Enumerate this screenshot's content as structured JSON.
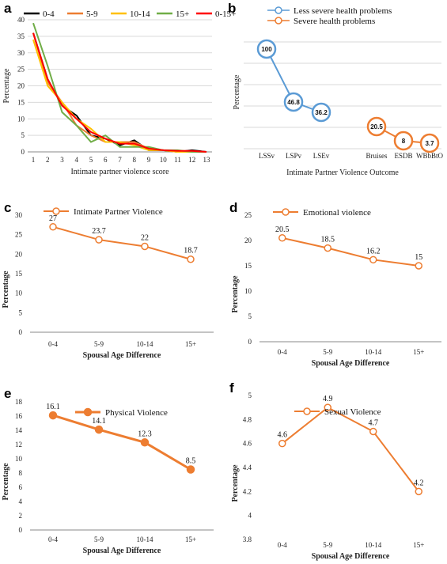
{
  "chart_data": [
    {
      "panel": "a",
      "type": "line",
      "xlabel": "Intimate partner violence score",
      "ylabel": "Percentage",
      "x": [
        1,
        2,
        3,
        4,
        5,
        6,
        7,
        8,
        9,
        10,
        11,
        12,
        13
      ],
      "ylim": [
        0,
        40
      ],
      "yticks": [
        0,
        5,
        10,
        15,
        20,
        25,
        30,
        35,
        40
      ],
      "grid": true,
      "legend": "top",
      "series": [
        {
          "name": "0-4",
          "color": "#000000",
          "values": [
            36,
            22,
            14,
            11,
            5,
            4,
            2,
            3.5,
            0.5,
            0.5,
            0,
            0.5,
            0
          ]
        },
        {
          "name": "5-9",
          "color": "#ED7D31",
          "values": [
            36,
            21,
            15,
            8,
            5,
            3,
            3,
            3,
            1,
            0.5,
            0,
            0,
            0
          ]
        },
        {
          "name": "10-14",
          "color": "#FFC000",
          "values": [
            34,
            20,
            15,
            10,
            7,
            3,
            3,
            2,
            0.5,
            0.5,
            0,
            0,
            0
          ]
        },
        {
          "name": "15+",
          "color": "#70AD47",
          "values": [
            39,
            26,
            12,
            8,
            3,
            5,
            1.5,
            1.5,
            1.5,
            0.5,
            0.5,
            0,
            0
          ]
        },
        {
          "name": "0-15+",
          "color": "#FF0000",
          "values": [
            36,
            22,
            14,
            10,
            6,
            4,
            2.5,
            2.5,
            1,
            0.5,
            0.3,
            0.3,
            0
          ]
        }
      ]
    },
    {
      "panel": "b",
      "type": "line",
      "xlabel": "Intimate Partner Violence Outcome",
      "ylabel": "Percentage",
      "legend": "top",
      "series": [
        {
          "name": "Less severe health problems",
          "color": "#5B9BD5",
          "categories": [
            "LSSv",
            "LSPv",
            "LSEv"
          ],
          "values": [
            100,
            46.8,
            36.2
          ],
          "labels": [
            "100",
            "46.8",
            "36.2"
          ]
        },
        {
          "name": "Severe health problems",
          "color": "#ED7D31",
          "categories": [
            "Bruises",
            "ESDB",
            "WBbBtO"
          ],
          "values": [
            20.5,
            8,
            3.7
          ],
          "labels": [
            "20.5",
            "8",
            "3.7"
          ]
        }
      ]
    },
    {
      "panel": "c",
      "type": "line",
      "xlabel": "Spousal Age Difference",
      "ylabel": "Percentage",
      "categories": [
        "0-4",
        "5-9",
        "10-14",
        "15+"
      ],
      "ylim": [
        0,
        30
      ],
      "yticks": [
        0,
        5,
        10,
        15,
        20,
        25,
        30
      ],
      "legend": "top",
      "series": [
        {
          "name": "Intimate Partner Violence",
          "color": "#ED7D31",
          "values": [
            27,
            23.7,
            22,
            18.7
          ],
          "labels": [
            "27",
            "23.7",
            "22",
            "18.7"
          ]
        }
      ]
    },
    {
      "panel": "d",
      "type": "line",
      "xlabel": "Spousal Age Difference",
      "ylabel": "Percentage",
      "categories": [
        "0-4",
        "5-9",
        "10-14",
        "15+"
      ],
      "ylim": [
        0,
        25
      ],
      "yticks": [
        0,
        5,
        10,
        15,
        20,
        25
      ],
      "legend": "top",
      "series": [
        {
          "name": "Emotional violence",
          "color": "#ED7D31",
          "values": [
            20.5,
            18.5,
            16.2,
            15
          ],
          "labels": [
            "20.5",
            "18.5",
            "16.2",
            "15"
          ]
        }
      ]
    },
    {
      "panel": "e",
      "type": "line",
      "xlabel": "Spousal Age Difference",
      "ylabel": "Percentage",
      "categories": [
        "0-4",
        "5-9",
        "10-14",
        "15+"
      ],
      "ylim": [
        0,
        18
      ],
      "yticks": [
        0,
        2,
        4,
        6,
        8,
        10,
        12,
        14,
        16,
        18
      ],
      "legend": "top",
      "series": [
        {
          "name": "Physical Violence",
          "color": "#ED7D31",
          "values": [
            16.1,
            14.1,
            12.3,
            8.5
          ],
          "labels": [
            "16.1",
            "14.1",
            "12.3",
            "8.5"
          ]
        }
      ]
    },
    {
      "panel": "f",
      "type": "line",
      "xlabel": "Spousal Age Difference",
      "ylabel": "Percentage",
      "categories": [
        "0-4",
        "5-9",
        "10-14",
        "15+"
      ],
      "ylim": [
        3.8,
        5
      ],
      "yticks": [
        3.8,
        4,
        4.2,
        4.4,
        4.6,
        4.8,
        5
      ],
      "legend": "top",
      "series": [
        {
          "name": "Sexual Violence",
          "color": "#ED7D31",
          "values": [
            4.6,
            4.9,
            4.7,
            4.2
          ],
          "labels": [
            "4.6",
            "4.9",
            "4.7",
            "4.2"
          ]
        }
      ]
    }
  ]
}
